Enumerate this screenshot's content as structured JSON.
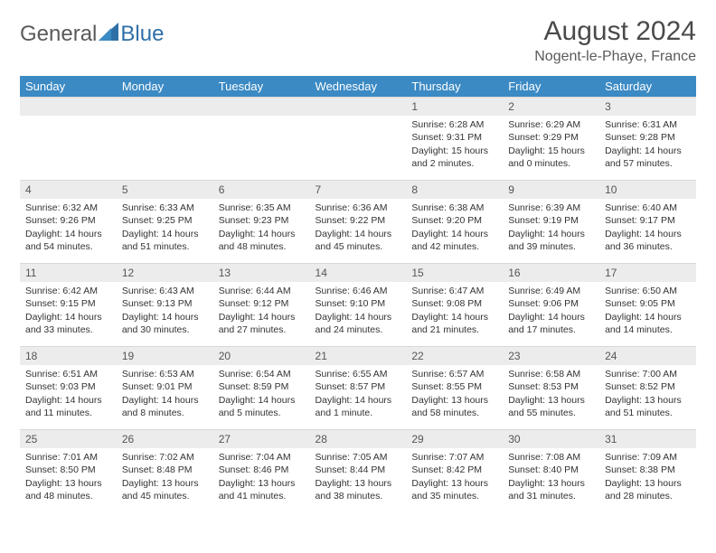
{
  "logo": {
    "textLeft": "General",
    "textRight": "Blue"
  },
  "brand_color": "#3b8ac4",
  "title": "August 2024",
  "location": "Nogent-le-Phaye, France",
  "weekdays": [
    "Sunday",
    "Monday",
    "Tuesday",
    "Wednesday",
    "Thursday",
    "Friday",
    "Saturday"
  ],
  "header_bg": "#3b8ac4",
  "header_fg": "#ffffff",
  "daynum_bg": "#ececec",
  "weeks": [
    [
      {
        "n": "",
        "sr": "",
        "ss": "",
        "dl": ""
      },
      {
        "n": "",
        "sr": "",
        "ss": "",
        "dl": ""
      },
      {
        "n": "",
        "sr": "",
        "ss": "",
        "dl": ""
      },
      {
        "n": "",
        "sr": "",
        "ss": "",
        "dl": ""
      },
      {
        "n": "1",
        "sr": "Sunrise: 6:28 AM",
        "ss": "Sunset: 9:31 PM",
        "dl": "Daylight: 15 hours and 2 minutes."
      },
      {
        "n": "2",
        "sr": "Sunrise: 6:29 AM",
        "ss": "Sunset: 9:29 PM",
        "dl": "Daylight: 15 hours and 0 minutes."
      },
      {
        "n": "3",
        "sr": "Sunrise: 6:31 AM",
        "ss": "Sunset: 9:28 PM",
        "dl": "Daylight: 14 hours and 57 minutes."
      }
    ],
    [
      {
        "n": "4",
        "sr": "Sunrise: 6:32 AM",
        "ss": "Sunset: 9:26 PM",
        "dl": "Daylight: 14 hours and 54 minutes."
      },
      {
        "n": "5",
        "sr": "Sunrise: 6:33 AM",
        "ss": "Sunset: 9:25 PM",
        "dl": "Daylight: 14 hours and 51 minutes."
      },
      {
        "n": "6",
        "sr": "Sunrise: 6:35 AM",
        "ss": "Sunset: 9:23 PM",
        "dl": "Daylight: 14 hours and 48 minutes."
      },
      {
        "n": "7",
        "sr": "Sunrise: 6:36 AM",
        "ss": "Sunset: 9:22 PM",
        "dl": "Daylight: 14 hours and 45 minutes."
      },
      {
        "n": "8",
        "sr": "Sunrise: 6:38 AM",
        "ss": "Sunset: 9:20 PM",
        "dl": "Daylight: 14 hours and 42 minutes."
      },
      {
        "n": "9",
        "sr": "Sunrise: 6:39 AM",
        "ss": "Sunset: 9:19 PM",
        "dl": "Daylight: 14 hours and 39 minutes."
      },
      {
        "n": "10",
        "sr": "Sunrise: 6:40 AM",
        "ss": "Sunset: 9:17 PM",
        "dl": "Daylight: 14 hours and 36 minutes."
      }
    ],
    [
      {
        "n": "11",
        "sr": "Sunrise: 6:42 AM",
        "ss": "Sunset: 9:15 PM",
        "dl": "Daylight: 14 hours and 33 minutes."
      },
      {
        "n": "12",
        "sr": "Sunrise: 6:43 AM",
        "ss": "Sunset: 9:13 PM",
        "dl": "Daylight: 14 hours and 30 minutes."
      },
      {
        "n": "13",
        "sr": "Sunrise: 6:44 AM",
        "ss": "Sunset: 9:12 PM",
        "dl": "Daylight: 14 hours and 27 minutes."
      },
      {
        "n": "14",
        "sr": "Sunrise: 6:46 AM",
        "ss": "Sunset: 9:10 PM",
        "dl": "Daylight: 14 hours and 24 minutes."
      },
      {
        "n": "15",
        "sr": "Sunrise: 6:47 AM",
        "ss": "Sunset: 9:08 PM",
        "dl": "Daylight: 14 hours and 21 minutes."
      },
      {
        "n": "16",
        "sr": "Sunrise: 6:49 AM",
        "ss": "Sunset: 9:06 PM",
        "dl": "Daylight: 14 hours and 17 minutes."
      },
      {
        "n": "17",
        "sr": "Sunrise: 6:50 AM",
        "ss": "Sunset: 9:05 PM",
        "dl": "Daylight: 14 hours and 14 minutes."
      }
    ],
    [
      {
        "n": "18",
        "sr": "Sunrise: 6:51 AM",
        "ss": "Sunset: 9:03 PM",
        "dl": "Daylight: 14 hours and 11 minutes."
      },
      {
        "n": "19",
        "sr": "Sunrise: 6:53 AM",
        "ss": "Sunset: 9:01 PM",
        "dl": "Daylight: 14 hours and 8 minutes."
      },
      {
        "n": "20",
        "sr": "Sunrise: 6:54 AM",
        "ss": "Sunset: 8:59 PM",
        "dl": "Daylight: 14 hours and 5 minutes."
      },
      {
        "n": "21",
        "sr": "Sunrise: 6:55 AM",
        "ss": "Sunset: 8:57 PM",
        "dl": "Daylight: 14 hours and 1 minute."
      },
      {
        "n": "22",
        "sr": "Sunrise: 6:57 AM",
        "ss": "Sunset: 8:55 PM",
        "dl": "Daylight: 13 hours and 58 minutes."
      },
      {
        "n": "23",
        "sr": "Sunrise: 6:58 AM",
        "ss": "Sunset: 8:53 PM",
        "dl": "Daylight: 13 hours and 55 minutes."
      },
      {
        "n": "24",
        "sr": "Sunrise: 7:00 AM",
        "ss": "Sunset: 8:52 PM",
        "dl": "Daylight: 13 hours and 51 minutes."
      }
    ],
    [
      {
        "n": "25",
        "sr": "Sunrise: 7:01 AM",
        "ss": "Sunset: 8:50 PM",
        "dl": "Daylight: 13 hours and 48 minutes."
      },
      {
        "n": "26",
        "sr": "Sunrise: 7:02 AM",
        "ss": "Sunset: 8:48 PM",
        "dl": "Daylight: 13 hours and 45 minutes."
      },
      {
        "n": "27",
        "sr": "Sunrise: 7:04 AM",
        "ss": "Sunset: 8:46 PM",
        "dl": "Daylight: 13 hours and 41 minutes."
      },
      {
        "n": "28",
        "sr": "Sunrise: 7:05 AM",
        "ss": "Sunset: 8:44 PM",
        "dl": "Daylight: 13 hours and 38 minutes."
      },
      {
        "n": "29",
        "sr": "Sunrise: 7:07 AM",
        "ss": "Sunset: 8:42 PM",
        "dl": "Daylight: 13 hours and 35 minutes."
      },
      {
        "n": "30",
        "sr": "Sunrise: 7:08 AM",
        "ss": "Sunset: 8:40 PM",
        "dl": "Daylight: 13 hours and 31 minutes."
      },
      {
        "n": "31",
        "sr": "Sunrise: 7:09 AM",
        "ss": "Sunset: 8:38 PM",
        "dl": "Daylight: 13 hours and 28 minutes."
      }
    ]
  ]
}
